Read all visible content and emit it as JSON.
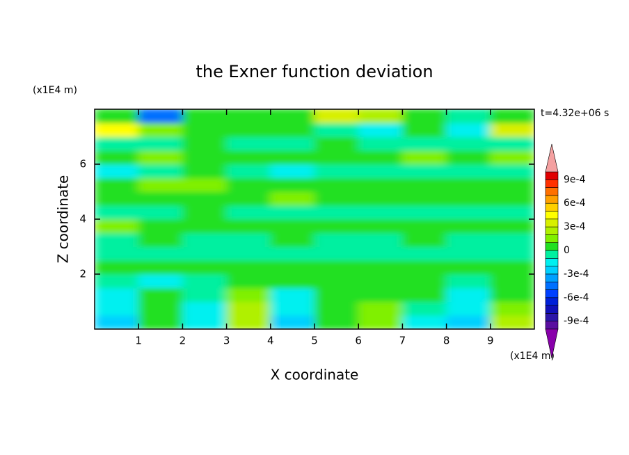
{
  "chart_data": {
    "type": "contour",
    "title": "the Exner function deviation",
    "xlabel": "X coordinate",
    "ylabel": "Z coordinate",
    "x_unit_label": "(x1E4 m)",
    "y_unit_label": "(x1E4 m)",
    "annotation": "t=4.32e+06 s",
    "xlim": [
      0,
      10
    ],
    "ylim": [
      0,
      8
    ],
    "xticks": [
      1,
      2,
      3,
      4,
      5,
      6,
      7,
      8,
      9
    ],
    "yticks": [
      2,
      4,
      6
    ],
    "x": [
      0.5,
      1.5,
      2.5,
      3.5,
      4.5,
      5.5,
      6.5,
      7.5,
      8.5,
      9.5
    ],
    "y": [
      0.25,
      0.75,
      1.25,
      1.75,
      2.25,
      2.75,
      3.25,
      3.75,
      4.25,
      4.75,
      5.25,
      5.75,
      6.25,
      6.75,
      7.25,
      7.75
    ],
    "z": [
      [
        -0.00025,
        5e-05,
        -0.00015,
        0.00025,
        -0.00025,
        5e-05,
        0.00015,
        -0.00015,
        -0.00025,
        0.00025
      ],
      [
        -0.00015,
        5e-05,
        -0.00015,
        0.00025,
        -0.00015,
        5e-05,
        0.00015,
        -5e-05,
        -0.00015,
        0.00015
      ],
      [
        -0.00015,
        5e-05,
        -5e-05,
        0.00015,
        -0.00015,
        5e-05,
        5e-05,
        5e-05,
        -0.00015,
        5e-05
      ],
      [
        -5e-05,
        -0.00015,
        -5e-05,
        5e-05,
        5e-05,
        5e-05,
        5e-05,
        5e-05,
        -5e-05,
        5e-05
      ],
      [
        5e-05,
        5e-05,
        5e-05,
        5e-05,
        5e-05,
        5e-05,
        5e-05,
        5e-05,
        5e-05,
        5e-05
      ],
      [
        -5e-05,
        -5e-05,
        -5e-05,
        -5e-05,
        -5e-05,
        -5e-05,
        -5e-05,
        -5e-05,
        -5e-05,
        -5e-05
      ],
      [
        -5e-05,
        5e-05,
        -5e-05,
        -5e-05,
        5e-05,
        -5e-05,
        -5e-05,
        5e-05,
        -5e-05,
        -5e-05
      ],
      [
        0.00015,
        5e-05,
        5e-05,
        5e-05,
        5e-05,
        5e-05,
        5e-05,
        5e-05,
        5e-05,
        5e-05
      ],
      [
        -5e-05,
        -5e-05,
        5e-05,
        -5e-05,
        -5e-05,
        -5e-05,
        -5e-05,
        -5e-05,
        -5e-05,
        -5e-05
      ],
      [
        5e-05,
        5e-05,
        5e-05,
        5e-05,
        0.00015,
        5e-05,
        5e-05,
        5e-05,
        5e-05,
        5e-05
      ],
      [
        5e-05,
        0.00015,
        0.00015,
        5e-05,
        5e-05,
        5e-05,
        5e-05,
        5e-05,
        5e-05,
        5e-05
      ],
      [
        -0.00015,
        -5e-05,
        5e-05,
        -5e-05,
        -0.00015,
        -5e-05,
        -5e-05,
        -5e-05,
        -5e-05,
        -5e-05
      ],
      [
        5e-05,
        0.00015,
        5e-05,
        5e-05,
        5e-05,
        5e-05,
        5e-05,
        0.00015,
        5e-05,
        0.00015
      ],
      [
        -5e-05,
        -5e-05,
        5e-05,
        -5e-05,
        -5e-05,
        5e-05,
        -5e-05,
        -5e-05,
        -5e-05,
        -5e-05
      ],
      [
        0.00045,
        0.00015,
        5e-05,
        5e-05,
        5e-05,
        -5e-05,
        -0.00015,
        5e-05,
        -0.00015,
        0.00035
      ],
      [
        5e-05,
        -0.00045,
        5e-05,
        5e-05,
        5e-05,
        0.00035,
        0.00025,
        5e-05,
        -5e-05,
        5e-05
      ]
    ],
    "levels": [
      -0.001,
      -0.0009,
      -0.0008,
      -0.0007,
      -0.0006,
      -0.0005,
      -0.0004,
      -0.0003,
      -0.0002,
      -0.0001,
      0,
      0.0001,
      0.0002,
      0.0003,
      0.0004,
      0.0005,
      0.0006,
      0.0007,
      0.0008,
      0.0009,
      0.001
    ],
    "colors": [
      "#5a0fa0",
      "#2c16a8",
      "#1010b8",
      "#0020d8",
      "#0040ff",
      "#0070ff",
      "#00a0ff",
      "#00d0ff",
      "#00f0f0",
      "#00f0a0",
      "#22e022",
      "#80f000",
      "#b0f000",
      "#d8f000",
      "#ffff00",
      "#ffd000",
      "#ffa000",
      "#ff7000",
      "#ff3000",
      "#e00000"
    ],
    "under_color": "#8800aa",
    "over_color": "#f4a0a0",
    "colorbar_ticks": [
      {
        "value": 0.0009,
        "label": "9e-4"
      },
      {
        "value": 0.0006,
        "label": "6e-4"
      },
      {
        "value": 0.0003,
        "label": "3e-4"
      },
      0,
      {
        "value": -0.0003,
        "label": "-3e-4"
      },
      {
        "value": -0.0006,
        "label": "-6e-4"
      },
      {
        "value": -0.0009,
        "label": "-9e-4"
      }
    ]
  }
}
